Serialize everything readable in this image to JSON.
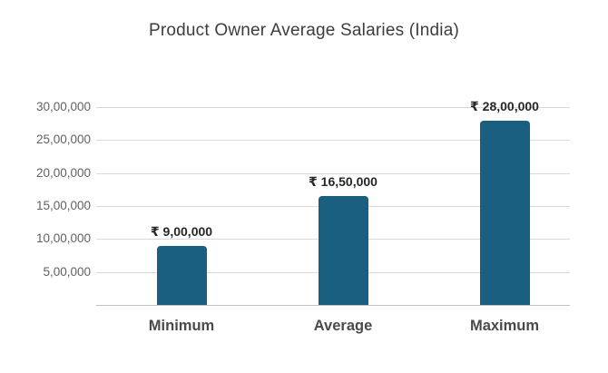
{
  "title": "Product Owner Average Salaries (India)",
  "colors": {
    "background": "#ffffff",
    "bar": "#1a5f80",
    "gridline": "#dadada",
    "baseline": "#c2c2c2",
    "title_text": "#3d3d3d",
    "axis_text": "#616161",
    "value_text": "#262626",
    "category_text": "#4a4a4a"
  },
  "chart_data": {
    "type": "bar",
    "title": "Product Owner Average Salaries (India)",
    "categories": [
      "Minimum",
      "Average",
      "Maximum"
    ],
    "values": [
      900000,
      1650000,
      2800000
    ],
    "value_labels": [
      "₹ 9,00,000",
      "₹ 16,50,000",
      "₹ 28,00,000"
    ],
    "currency_symbol": "₹",
    "y_ticks": [
      {
        "value": 500000,
        "label": "5,00,000"
      },
      {
        "value": 1000000,
        "label": "10,00,000"
      },
      {
        "value": 1500000,
        "label": "15,00,000"
      },
      {
        "value": 2000000,
        "label": "20,00,000"
      },
      {
        "value": 2500000,
        "label": "25,00,000"
      },
      {
        "value": 3000000,
        "label": "30,00,000"
      }
    ],
    "ylim": [
      0,
      3000000
    ],
    "xlabel": "",
    "ylabel": "",
    "grid": true,
    "legend_position": "none",
    "bar_color": "#1a5f80"
  }
}
